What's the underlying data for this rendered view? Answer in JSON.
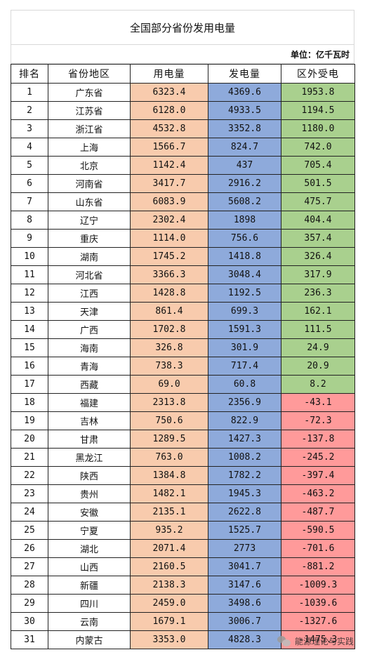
{
  "title": "全国部分省份发用电量",
  "unit": "单位：亿千瓦时",
  "headers": [
    "排名",
    "省份地区",
    "用电量",
    "发电量",
    "区外受电"
  ],
  "colors": {
    "use": "#f8cbad",
    "gen": "#8eaadb",
    "ext_positive": "#a9d08e",
    "ext_negative": "#ff9a9a"
  },
  "rows": [
    {
      "rank": "1",
      "province": "广东省",
      "use": "6323.4",
      "gen": "4369.6",
      "ext": "1953.8"
    },
    {
      "rank": "2",
      "province": "江苏省",
      "use": "6128.0",
      "gen": "4933.5",
      "ext": "1194.5"
    },
    {
      "rank": "3",
      "province": "浙江省",
      "use": "4532.8",
      "gen": "3352.8",
      "ext": "1180.0"
    },
    {
      "rank": "4",
      "province": "上海",
      "use": "1566.7",
      "gen": "824.7",
      "ext": "742.0"
    },
    {
      "rank": "5",
      "province": "北京",
      "use": "1142.4",
      "gen": "437",
      "ext": "705.4"
    },
    {
      "rank": "6",
      "province": "河南省",
      "use": "3417.7",
      "gen": "2916.2",
      "ext": "501.5"
    },
    {
      "rank": "7",
      "province": "山东省",
      "use": "6083.9",
      "gen": "5608.2",
      "ext": "475.7"
    },
    {
      "rank": "8",
      "province": "辽宁",
      "use": "2302.4",
      "gen": "1898",
      "ext": "404.4"
    },
    {
      "rank": "9",
      "province": "重庆",
      "use": "1114.0",
      "gen": "756.6",
      "ext": "357.4"
    },
    {
      "rank": "10",
      "province": "湖南",
      "use": "1745.2",
      "gen": "1418.8",
      "ext": "326.4"
    },
    {
      "rank": "11",
      "province": "河北省",
      "use": "3366.3",
      "gen": "3048.4",
      "ext": "317.9"
    },
    {
      "rank": "12",
      "province": "江西",
      "use": "1428.8",
      "gen": "1192.5",
      "ext": "236.3"
    },
    {
      "rank": "13",
      "province": "天津",
      "use": "861.4",
      "gen": "699.3",
      "ext": "162.1"
    },
    {
      "rank": "14",
      "province": "广西",
      "use": "1702.8",
      "gen": "1591.3",
      "ext": "111.5"
    },
    {
      "rank": "15",
      "province": "海南",
      "use": "326.8",
      "gen": "301.9",
      "ext": "24.9"
    },
    {
      "rank": "16",
      "province": "青海",
      "use": "738.3",
      "gen": "717.4",
      "ext": "20.9"
    },
    {
      "rank": "17",
      "province": "西藏",
      "use": "69.0",
      "gen": "60.8",
      "ext": "8.2"
    },
    {
      "rank": "18",
      "province": "福建",
      "use": "2313.8",
      "gen": "2356.9",
      "ext": "-43.1"
    },
    {
      "rank": "19",
      "province": "吉林",
      "use": "750.6",
      "gen": "822.9",
      "ext": "-72.3"
    },
    {
      "rank": "20",
      "province": "甘肃",
      "use": "1289.5",
      "gen": "1427.3",
      "ext": "-137.8"
    },
    {
      "rank": "21",
      "province": "黑龙江",
      "use": "763.0",
      "gen": "1008.2",
      "ext": "-245.2"
    },
    {
      "rank": "22",
      "province": "陕西",
      "use": "1384.8",
      "gen": "1782.2",
      "ext": "-397.4"
    },
    {
      "rank": "23",
      "province": "贵州",
      "use": "1482.1",
      "gen": "1945.3",
      "ext": "-463.2"
    },
    {
      "rank": "24",
      "province": "安徽",
      "use": "2135.1",
      "gen": "2622.8",
      "ext": "-487.7"
    },
    {
      "rank": "25",
      "province": "宁夏",
      "use": "935.2",
      "gen": "1525.7",
      "ext": "-590.5"
    },
    {
      "rank": "26",
      "province": "湖北",
      "use": "2071.4",
      "gen": "2773",
      "ext": "-701.6"
    },
    {
      "rank": "27",
      "province": "山西",
      "use": "2160.5",
      "gen": "3041.7",
      "ext": "-881.2"
    },
    {
      "rank": "28",
      "province": "新疆",
      "use": "2138.3",
      "gen": "3147.6",
      "ext": "-1009.3"
    },
    {
      "rank": "29",
      "province": "四川",
      "use": "2459.0",
      "gen": "3498.6",
      "ext": "-1039.6"
    },
    {
      "rank": "30",
      "province": "云南",
      "use": "1679.1",
      "gen": "3006.7",
      "ext": "-1327.6"
    },
    {
      "rank": "31",
      "province": "内蒙古",
      "use": "3353.0",
      "gen": "4828.3",
      "ext": "-1475.3"
    }
  ],
  "watermark": {
    "icon": "wechat-icon",
    "text": "能源理论与实践"
  }
}
